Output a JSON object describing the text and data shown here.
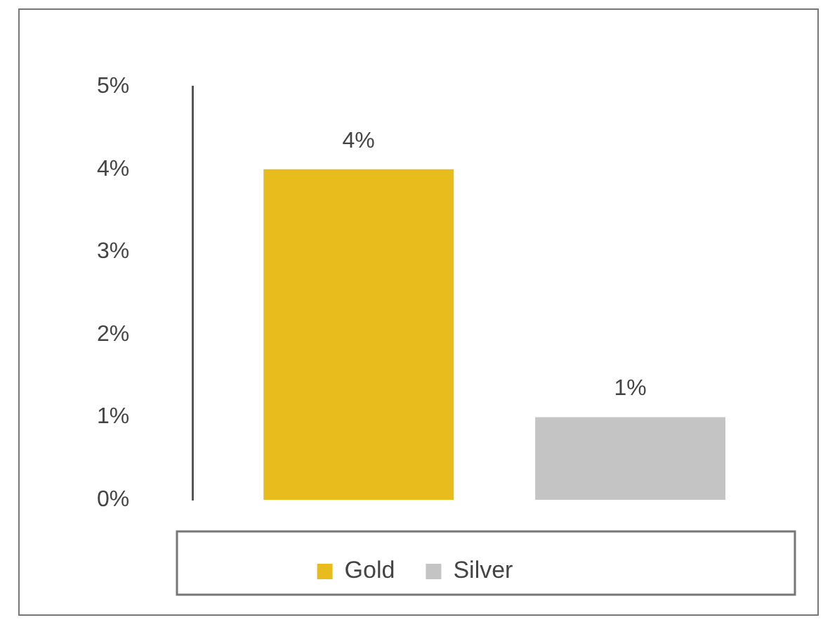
{
  "chart_data": {
    "type": "bar",
    "categories": [
      null
    ],
    "series": [
      {
        "name": "Gold",
        "color": "#e8bc1c",
        "values": [
          4
        ],
        "value_labels": [
          "4%"
        ]
      },
      {
        "name": "Silver",
        "color": "#c4c4c4",
        "values": [
          1
        ],
        "value_labels": [
          "1%"
        ]
      }
    ],
    "ylim": [
      0,
      5
    ],
    "yticks": [
      {
        "value": 0,
        "label": "0%"
      },
      {
        "value": 1,
        "label": "1%"
      },
      {
        "value": 2,
        "label": "2%"
      },
      {
        "value": 3,
        "label": "3%"
      },
      {
        "value": 4,
        "label": "4%"
      },
      {
        "value": 5,
        "label": "5%"
      }
    ],
    "grid": false,
    "legend": "bottom"
  }
}
